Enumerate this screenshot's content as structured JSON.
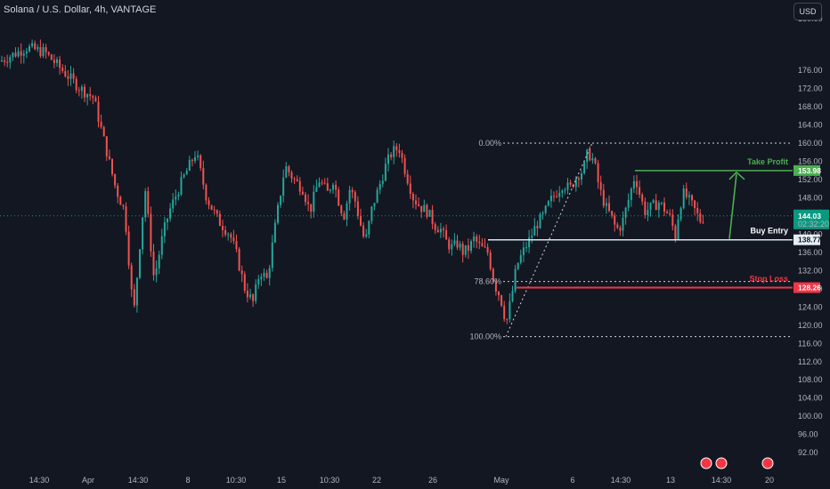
{
  "header": {
    "title": "Solana / U.S. Dollar, 4h, VANTAGE",
    "currency": "USD"
  },
  "colors": {
    "up": "#26a69a",
    "down": "#ef5350",
    "background": "#131722",
    "take_profit": "#4caf50",
    "stop_loss": "#f23645",
    "buy_entry": "#d1e3f0",
    "current_price": "#089981"
  },
  "price_scale": {
    "ticks": [
      "176.00",
      "172.00",
      "168.00",
      "164.00",
      "160.00",
      "156.00",
      "152.00",
      "148.00",
      "144.00",
      "140.00",
      "136.00",
      "132.00",
      "128.00",
      "124.00",
      "120.00",
      "116.00",
      "112.00",
      "108.00",
      "104.00",
      "100.00",
      "96.00",
      "92.00"
    ],
    "partial_top": "180.00"
  },
  "time_scale": {
    "ticks": [
      "14:30",
      "Apr",
      "14:30",
      "8",
      "10:30",
      "15",
      "10:30",
      "22",
      "26",
      "May",
      "6",
      "14:30",
      "13",
      "14:30",
      "20"
    ]
  },
  "levels": {
    "take_profit": {
      "label": "Take Profit",
      "price_tag": "153.98"
    },
    "buy_entry": {
      "label": "Buy Entry",
      "price_tag": "138.77"
    },
    "stop_loss": {
      "label": "Stop Loss",
      "price_tag": "128.26"
    },
    "current": {
      "price_tag": "144.03",
      "countdown": "02:32:20"
    }
  },
  "fib": {
    "labels": [
      "0.00%",
      "78.60%",
      "100.00%"
    ]
  },
  "chart_data": {
    "type": "candlestick",
    "title": "Solana / U.S. Dollar, 4h, VANTAGE",
    "y_axis": {
      "min": 92,
      "max": 181,
      "unit": "USD"
    },
    "path_points": [
      {
        "x": 0,
        "y": 178
      },
      {
        "x": 30,
        "y": 181
      },
      {
        "x": 50,
        "y": 180
      },
      {
        "x": 70,
        "y": 176
      },
      {
        "x": 90,
        "y": 172
      },
      {
        "x": 105,
        "y": 170
      },
      {
        "x": 115,
        "y": 162
      },
      {
        "x": 130,
        "y": 150
      },
      {
        "x": 140,
        "y": 145
      },
      {
        "x": 150,
        "y": 122
      },
      {
        "x": 158,
        "y": 140
      },
      {
        "x": 163,
        "y": 150
      },
      {
        "x": 173,
        "y": 130
      },
      {
        "x": 183,
        "y": 140
      },
      {
        "x": 190,
        "y": 145
      },
      {
        "x": 205,
        "y": 152
      },
      {
        "x": 220,
        "y": 158
      },
      {
        "x": 232,
        "y": 148
      },
      {
        "x": 245,
        "y": 143
      },
      {
        "x": 258,
        "y": 140
      },
      {
        "x": 265,
        "y": 136
      },
      {
        "x": 275,
        "y": 128
      },
      {
        "x": 284,
        "y": 125
      },
      {
        "x": 292,
        "y": 132
      },
      {
        "x": 300,
        "y": 130
      },
      {
        "x": 310,
        "y": 143
      },
      {
        "x": 320,
        "y": 155
      },
      {
        "x": 330,
        "y": 152
      },
      {
        "x": 340,
        "y": 150
      },
      {
        "x": 348,
        "y": 145
      },
      {
        "x": 358,
        "y": 152
      },
      {
        "x": 368,
        "y": 149
      },
      {
        "x": 374,
        "y": 152
      },
      {
        "x": 382,
        "y": 146
      },
      {
        "x": 387,
        "y": 144
      },
      {
        "x": 392,
        "y": 150
      },
      {
        "x": 398,
        "y": 148
      },
      {
        "x": 405,
        "y": 142
      },
      {
        "x": 410,
        "y": 138
      },
      {
        "x": 418,
        "y": 146
      },
      {
        "x": 425,
        "y": 150
      },
      {
        "x": 433,
        "y": 155
      },
      {
        "x": 440,
        "y": 158
      },
      {
        "x": 448,
        "y": 159
      },
      {
        "x": 455,
        "y": 154
      },
      {
        "x": 464,
        "y": 148
      },
      {
        "x": 472,
        "y": 146
      },
      {
        "x": 480,
        "y": 145
      },
      {
        "x": 488,
        "y": 142
      },
      {
        "x": 495,
        "y": 141
      },
      {
        "x": 502,
        "y": 138
      },
      {
        "x": 508,
        "y": 137
      },
      {
        "x": 514,
        "y": 138
      },
      {
        "x": 520,
        "y": 136
      },
      {
        "x": 527,
        "y": 137
      },
      {
        "x": 532,
        "y": 139
      },
      {
        "x": 540,
        "y": 137
      },
      {
        "x": 548,
        "y": 136
      },
      {
        "x": 555,
        "y": 129
      },
      {
        "x": 560,
        "y": 127
      },
      {
        "x": 565,
        "y": 124
      },
      {
        "x": 568,
        "y": 120
      },
      {
        "x": 572,
        "y": 124
      },
      {
        "x": 576,
        "y": 128
      },
      {
        "x": 580,
        "y": 133
      },
      {
        "x": 587,
        "y": 136
      },
      {
        "x": 595,
        "y": 139
      },
      {
        "x": 602,
        "y": 142
      },
      {
        "x": 610,
        "y": 144
      },
      {
        "x": 617,
        "y": 147
      },
      {
        "x": 624,
        "y": 149
      },
      {
        "x": 632,
        "y": 151
      },
      {
        "x": 640,
        "y": 150
      },
      {
        "x": 648,
        "y": 153
      },
      {
        "x": 655,
        "y": 154
      },
      {
        "x": 660,
        "y": 158
      },
      {
        "x": 667,
        "y": 156
      },
      {
        "x": 673,
        "y": 150
      },
      {
        "x": 680,
        "y": 146
      },
      {
        "x": 686,
        "y": 144
      },
      {
        "x": 692,
        "y": 141
      },
      {
        "x": 698,
        "y": 142
      },
      {
        "x": 705,
        "y": 147
      },
      {
        "x": 713,
        "y": 153
      },
      {
        "x": 718,
        "y": 149
      },
      {
        "x": 724,
        "y": 145
      },
      {
        "x": 732,
        "y": 146
      },
      {
        "x": 740,
        "y": 147
      },
      {
        "x": 748,
        "y": 145
      },
      {
        "x": 754,
        "y": 143
      },
      {
        "x": 758,
        "y": 139
      },
      {
        "x": 763,
        "y": 146
      },
      {
        "x": 768,
        "y": 149
      },
      {
        "x": 775,
        "y": 147
      },
      {
        "x": 781,
        "y": 145
      },
      {
        "x": 786,
        "y": 143
      },
      {
        "x": 791,
        "y": 144
      }
    ]
  }
}
